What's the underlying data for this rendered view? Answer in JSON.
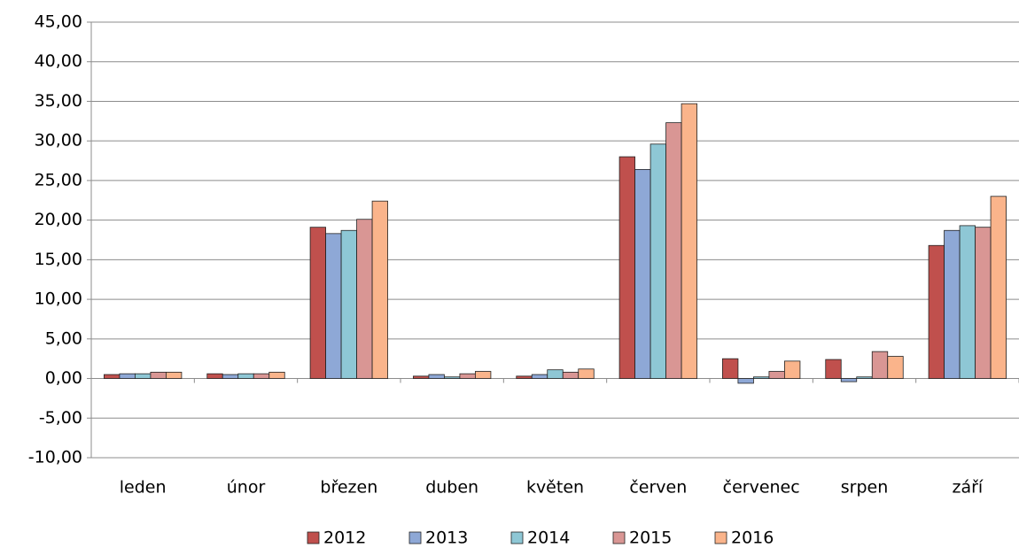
{
  "chart_data": {
    "type": "bar",
    "categories": [
      "leden",
      "únor",
      "březen",
      "duben",
      "květen",
      "červen",
      "červenec",
      "srpen",
      "září"
    ],
    "series": [
      {
        "name": "2012",
        "color": "#c0504d",
        "values": [
          0.5,
          0.6,
          19.1,
          0.3,
          0.3,
          28.0,
          2.5,
          2.4,
          16.8
        ]
      },
      {
        "name": "2013",
        "color": "#8ea8d6",
        "values": [
          0.6,
          0.5,
          18.3,
          0.5,
          0.5,
          26.4,
          -0.6,
          -0.4,
          18.7
        ]
      },
      {
        "name": "2014",
        "color": "#8ec7d5",
        "values": [
          0.6,
          0.6,
          18.7,
          0.2,
          1.1,
          29.6,
          0.2,
          0.2,
          19.3
        ]
      },
      {
        "name": "2015",
        "color": "#d99694",
        "values": [
          0.8,
          0.6,
          20.1,
          0.6,
          0.8,
          32.3,
          0.9,
          3.4,
          19.1
        ]
      },
      {
        "name": "2016",
        "color": "#fab48b",
        "values": [
          0.8,
          0.8,
          22.4,
          0.9,
          1.2,
          34.7,
          2.2,
          2.8,
          23.0
        ]
      }
    ],
    "ylim": [
      -10,
      45
    ],
    "yticks": [
      {
        "value": -10,
        "label": "-10,00"
      },
      {
        "value": -5,
        "label": "-5,00"
      },
      {
        "value": 0,
        "label": "0,00"
      },
      {
        "value": 5,
        "label": "5,00"
      },
      {
        "value": 10,
        "label": "10,00"
      },
      {
        "value": 15,
        "label": "15,00"
      },
      {
        "value": 20,
        "label": "20,00"
      },
      {
        "value": 25,
        "label": "25,00"
      },
      {
        "value": 30,
        "label": "30,00"
      },
      {
        "value": 35,
        "label": "35,00"
      },
      {
        "value": 40,
        "label": "40,00"
      },
      {
        "value": 45,
        "label": "45,00"
      }
    ],
    "grid": true,
    "legend": "bottom"
  }
}
